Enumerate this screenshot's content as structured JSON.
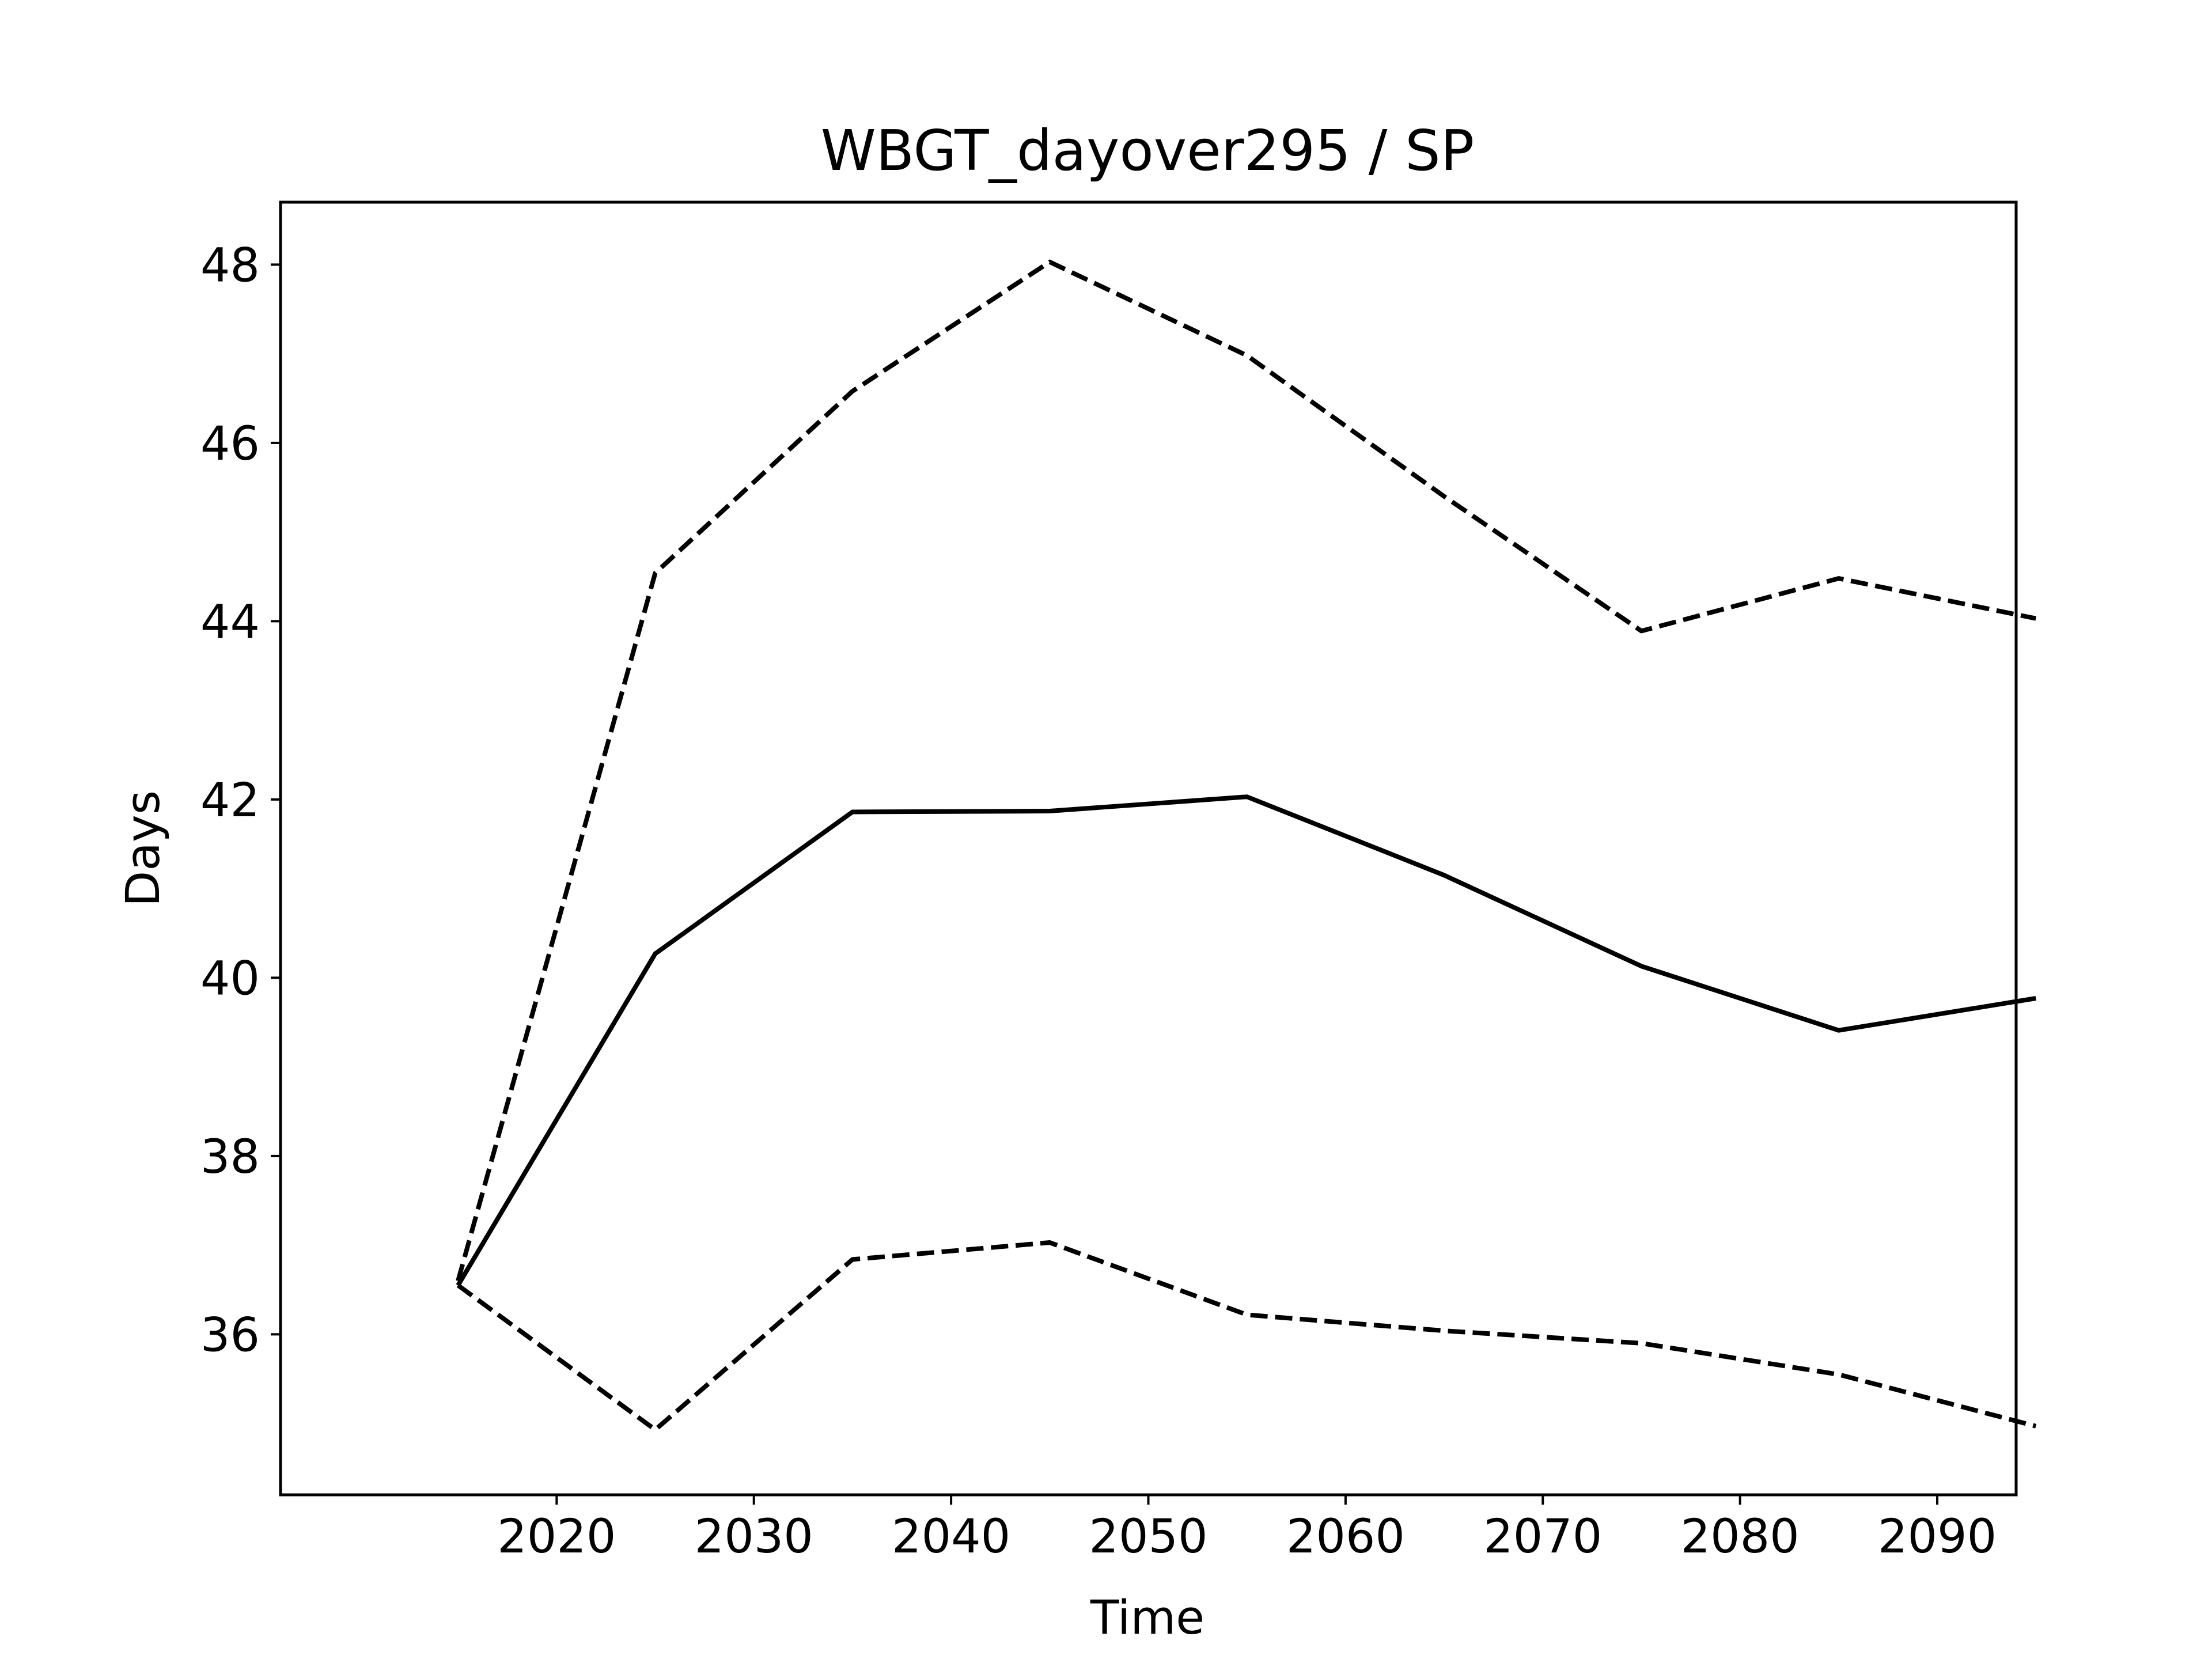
{
  "chart_data": {
    "type": "line",
    "title": "WBGT_dayover295 / SP",
    "xlabel": "Time",
    "ylabel": "Days",
    "x": [
      2015,
      2025,
      2035,
      2045,
      2055,
      2065,
      2075,
      2085,
      2095
    ],
    "xlim": [
      2006,
      2094
    ],
    "ylim": [
      34.2,
      48.7
    ],
    "xticks": [
      2020,
      2030,
      2040,
      2050,
      2060,
      2070,
      2080,
      2090
    ],
    "xtick_labels": [
      "2020",
      "2030",
      "2040",
      "2050",
      "2060",
      "2070",
      "2080",
      "2090"
    ],
    "yticks": [
      36,
      38,
      40,
      42,
      44,
      46,
      48
    ],
    "ytick_labels": [
      "36",
      "38",
      "40",
      "42",
      "44",
      "46",
      "48"
    ],
    "grid": false,
    "series": [
      {
        "style": "solid",
        "color": "#000000",
        "values": [
          36.55,
          40.27,
          41.86,
          41.87,
          42.03,
          41.15,
          40.13,
          39.41,
          39.77
        ]
      },
      {
        "style": "dashed",
        "color": "#000000",
        "values": [
          36.6,
          44.54,
          46.58,
          48.03,
          46.98,
          45.4,
          43.89,
          44.48,
          44.03
        ]
      },
      {
        "style": "dashed",
        "color": "#000000",
        "values": [
          36.55,
          34.93,
          36.84,
          37.03,
          36.22,
          36.04,
          35.9,
          35.55,
          34.97
        ]
      }
    ]
  }
}
